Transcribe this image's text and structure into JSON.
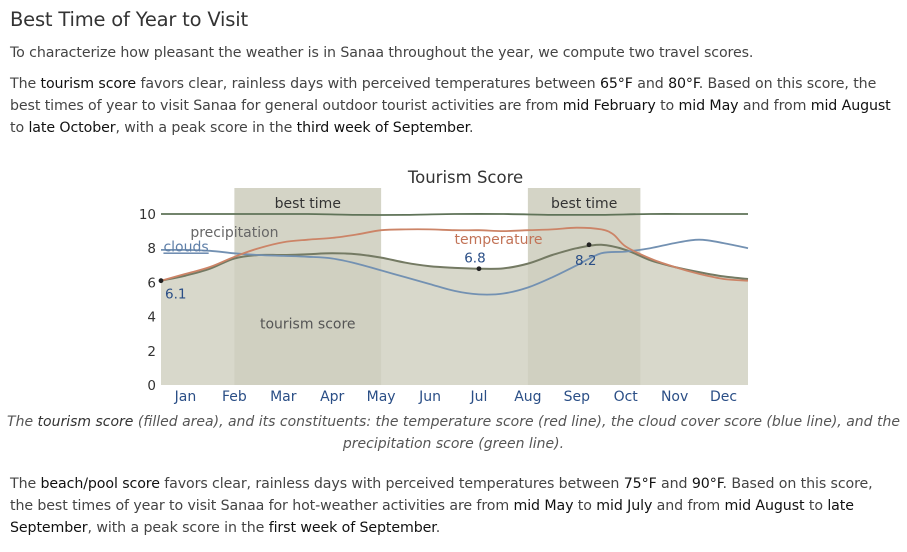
{
  "heading": "Best Time of Year to Visit",
  "intro": "To characterize how pleasant the weather is in Sanaa throughout the year, we compute two travel scores.",
  "tourism_paragraph": {
    "p1": "The ",
    "t1": "tourism score",
    "p2": " favors clear, rainless days with perceived temperatures between ",
    "t2": "65°F",
    "p3": " and ",
    "t3": "80°F",
    "p4": ". Based on this score, the best times of year to visit Sanaa for general outdoor tourist activities are from ",
    "t4": "mid February",
    "p5": " to ",
    "t5": "mid May",
    "p6": " and from ",
    "t6": "mid August",
    "p7": " to ",
    "t7": "late October",
    "p8": ", with a peak score in the ",
    "t8": "third week of September",
    "p9": "."
  },
  "caption": {
    "c1": "The ",
    "c2": "tourism score",
    "c3": " (filled area), and its constituents: the temperature score (red line), the cloud cover score (blue line), and the precipitation score (green line)."
  },
  "beach_paragraph": {
    "p1": "The ",
    "t1": "beach/pool score",
    "p2": " favors clear, rainless days with perceived temperatures between ",
    "t2": "75°F",
    "p3": " and ",
    "t3": "90°F",
    "p4": ". Based on this score, the best times of year to visit Sanaa for hot-weather activities are from ",
    "t4": "mid May",
    "p5": " to ",
    "t5": "mid July",
    "p6": " and from ",
    "t6": "mid August",
    "p7": " to ",
    "t7": "late September",
    "p8": ", with a peak score in the ",
    "t8": "first week of September",
    "p9": "."
  },
  "colors": {
    "area": "#cfd0c0",
    "area_line": "#747a63",
    "best_band": "#d4d4c6",
    "temperature": "#cc8467",
    "clouds": "#7391b2",
    "precipitation": "#5f7358"
  },
  "chart_data": {
    "type": "area",
    "title": "Tourism Score",
    "x_unit": "month",
    "xlim": [
      0,
      12
    ],
    "ylim": [
      0,
      10
    ],
    "yticks": [
      0,
      2,
      4,
      6,
      8,
      10
    ],
    "month_labels": [
      "Jan",
      "Feb",
      "Mar",
      "Apr",
      "May",
      "Jun",
      "Jul",
      "Aug",
      "Sep",
      "Oct",
      "Nov",
      "Dec"
    ],
    "best_time_label": "best time",
    "best_time_ranges": [
      [
        1.5,
        4.5
      ],
      [
        7.5,
        9.8
      ]
    ],
    "area_label": "tourism score",
    "series": [
      {
        "name": "tourism score",
        "key": "tourism",
        "x": [
          0,
          0.5,
          1,
          1.5,
          2,
          2.5,
          3,
          3.5,
          4,
          4.5,
          5,
          5.5,
          6,
          6.5,
          7,
          7.5,
          8,
          8.5,
          9,
          9.5,
          10,
          10.5,
          11,
          11.5,
          12
        ],
        "values": [
          6.1,
          6.4,
          6.8,
          7.4,
          7.6,
          7.6,
          7.65,
          7.7,
          7.65,
          7.45,
          7.15,
          6.95,
          6.85,
          6.8,
          6.82,
          7.1,
          7.6,
          8.0,
          8.2,
          7.9,
          7.3,
          6.9,
          6.6,
          6.35,
          6.2
        ]
      },
      {
        "name": "temperature",
        "key": "temperature",
        "x": [
          0,
          0.5,
          1,
          1.5,
          2,
          2.5,
          3,
          3.5,
          4,
          4.5,
          5,
          5.5,
          6,
          6.5,
          7,
          7.5,
          8,
          8.5,
          9,
          9.25,
          9.5,
          10,
          10.5,
          11,
          11.5,
          12
        ],
        "values": [
          6.1,
          6.5,
          6.9,
          7.5,
          8.0,
          8.35,
          8.5,
          8.6,
          8.8,
          9.05,
          9.1,
          9.1,
          9.05,
          9.05,
          9.0,
          9.05,
          9.1,
          9.2,
          9.1,
          8.8,
          8.1,
          7.4,
          6.9,
          6.5,
          6.2,
          6.1
        ]
      },
      {
        "name": "clouds",
        "key": "clouds",
        "x": [
          0,
          0.5,
          1,
          1.5,
          2,
          2.5,
          3,
          3.5,
          4,
          4.5,
          5,
          5.5,
          6,
          6.5,
          7,
          7.5,
          8,
          8.5,
          9,
          9.5,
          10,
          10.5,
          11,
          11.5,
          12
        ],
        "values": [
          7.9,
          7.9,
          7.85,
          7.7,
          7.6,
          7.55,
          7.5,
          7.4,
          7.1,
          6.7,
          6.3,
          5.9,
          5.5,
          5.3,
          5.35,
          5.7,
          6.3,
          7.0,
          7.7,
          7.8,
          8.0,
          8.3,
          8.5,
          8.3,
          8.0
        ]
      },
      {
        "name": "precipitation",
        "key": "precipitation",
        "x": [
          0,
          1,
          2,
          3,
          4,
          5,
          6,
          7,
          8,
          9,
          10,
          11,
          12
        ],
        "values": [
          10,
          10,
          10,
          10,
          9.95,
          9.95,
          10,
          10,
          9.95,
          9.95,
          10,
          10,
          10
        ]
      }
    ],
    "series_labels": {
      "temperature": "temperature",
      "clouds": "clouds",
      "precipitation": "precipitation"
    },
    "annotations": [
      {
        "label": "6.1",
        "x": 0,
        "y": 6.1
      },
      {
        "label": "6.8",
        "x": 6.5,
        "y": 6.8
      },
      {
        "label": "8.2",
        "x": 8.75,
        "y": 8.2
      }
    ]
  }
}
